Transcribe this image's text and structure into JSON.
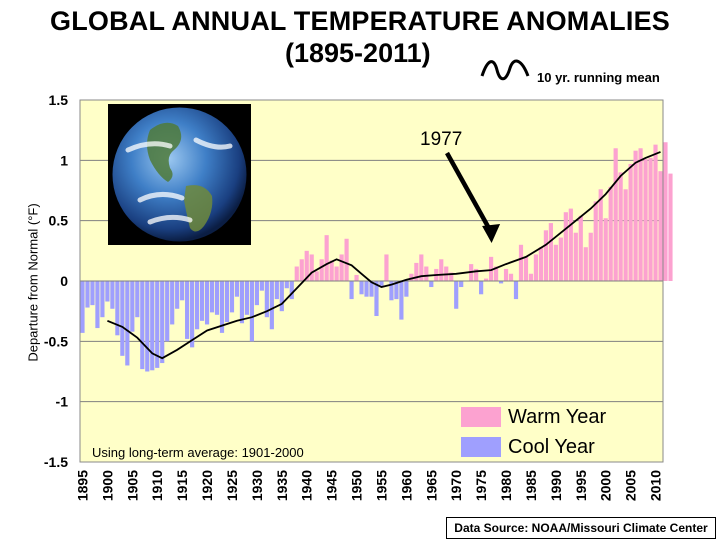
{
  "chart_data": {
    "type": "bar",
    "title": "GLOBAL ANNUAL TEMPERATURE ANOMALIES",
    "subtitle": "(1895-2011)",
    "ylabel": "Departure from Normal (°F)",
    "xlabel": "",
    "ylim": [
      -1.5,
      1.5
    ],
    "yticks": [
      "1.5",
      "1",
      "0.5",
      "0",
      "-0.5",
      "-1",
      "-1.5"
    ],
    "xticks": [
      "1895",
      "1900",
      "1905",
      "1910",
      "1915",
      "1920",
      "1925",
      "1930",
      "1935",
      "1940",
      "1945",
      "1950",
      "1955",
      "1960",
      "1965",
      "1970",
      "1975",
      "1980",
      "1985",
      "1990",
      "1995",
      "2000",
      "2005",
      "2010"
    ],
    "x_start": 1895,
    "x_end": 2011,
    "values": [
      -0.43,
      -0.22,
      -0.2,
      -0.39,
      -0.3,
      -0.17,
      -0.23,
      -0.45,
      -0.62,
      -0.7,
      -0.42,
      -0.3,
      -0.73,
      -0.75,
      -0.74,
      -0.72,
      -0.68,
      -0.5,
      -0.36,
      -0.23,
      -0.16,
      -0.48,
      -0.55,
      -0.4,
      -0.33,
      -0.36,
      -0.26,
      -0.28,
      -0.43,
      -0.34,
      -0.26,
      -0.13,
      -0.35,
      -0.28,
      -0.5,
      -0.2,
      -0.08,
      -0.3,
      -0.4,
      -0.15,
      -0.25,
      -0.06,
      -0.15,
      0.12,
      0.18,
      0.25,
      0.22,
      0.08,
      0.18,
      0.38,
      0.17,
      0.12,
      0.22,
      0.35,
      -0.15,
      0.05,
      -0.11,
      -0.13,
      -0.13,
      -0.29,
      -0.04,
      0.22,
      -0.16,
      -0.15,
      -0.32,
      -0.13,
      0.06,
      0.15,
      0.22,
      0.12,
      -0.05,
      0.1,
      0.18,
      0.12,
      0.07,
      -0.23,
      -0.05,
      0.0,
      0.14,
      0.1,
      -0.11,
      0.02,
      0.2,
      0.12,
      -0.02,
      0.1,
      0.06,
      -0.15,
      0.3,
      0.2,
      0.06,
      0.22,
      0.28,
      0.42,
      0.48,
      0.3,
      0.36,
      0.57,
      0.6,
      0.4,
      0.54,
      0.28,
      0.4,
      0.66,
      0.76,
      0.52,
      0.78,
      1.1,
      0.9,
      0.76,
      0.97,
      1.08,
      1.1,
      1.01,
      1.02,
      1.13,
      0.91,
      1.15,
      0.89
    ],
    "running_mean": [
      [
        1900,
        -0.33
      ],
      [
        1903,
        -0.38
      ],
      [
        1906,
        -0.47
      ],
      [
        1909,
        -0.6
      ],
      [
        1911,
        -0.64
      ],
      [
        1914,
        -0.57
      ],
      [
        1917,
        -0.49
      ],
      [
        1920,
        -0.41
      ],
      [
        1923,
        -0.37
      ],
      [
        1926,
        -0.33
      ],
      [
        1929,
        -0.3
      ],
      [
        1932,
        -0.25
      ],
      [
        1935,
        -0.19
      ],
      [
        1938,
        -0.06
      ],
      [
        1941,
        0.07
      ],
      [
        1944,
        0.14
      ],
      [
        1946,
        0.18
      ],
      [
        1949,
        0.13
      ],
      [
        1951,
        0.06
      ],
      [
        1953,
        -0.01
      ],
      [
        1955,
        -0.05
      ],
      [
        1957,
        -0.03
      ],
      [
        1960,
        0.01
      ],
      [
        1963,
        0.04
      ],
      [
        1966,
        0.05
      ],
      [
        1970,
        0.06
      ],
      [
        1974,
        0.08
      ],
      [
        1977,
        0.09
      ],
      [
        1980,
        0.14
      ],
      [
        1984,
        0.2
      ],
      [
        1988,
        0.3
      ],
      [
        1991,
        0.4
      ],
      [
        1994,
        0.5
      ],
      [
        1997,
        0.6
      ],
      [
        2000,
        0.72
      ],
      [
        2003,
        0.87
      ],
      [
        2006,
        0.98
      ],
      [
        2008,
        1.02
      ],
      [
        2011,
        1.07
      ]
    ],
    "annotation": {
      "label": "1977",
      "year": 1977
    },
    "note": "Using long-term average: 1901-2000",
    "legend": [
      {
        "label": "Warm Year",
        "color": "#fca2d0"
      },
      {
        "label": "Cool Year",
        "color": "#9f9ffe"
      }
    ],
    "running_mean_label": "10 yr. running mean",
    "colors": {
      "background": "#ffffc8",
      "warm": "#fca2d0",
      "cool": "#9f9ffe",
      "line": "#000000",
      "grid": "#808080"
    }
  },
  "source": "Data Source: NOAA/Missouri Climate Center"
}
